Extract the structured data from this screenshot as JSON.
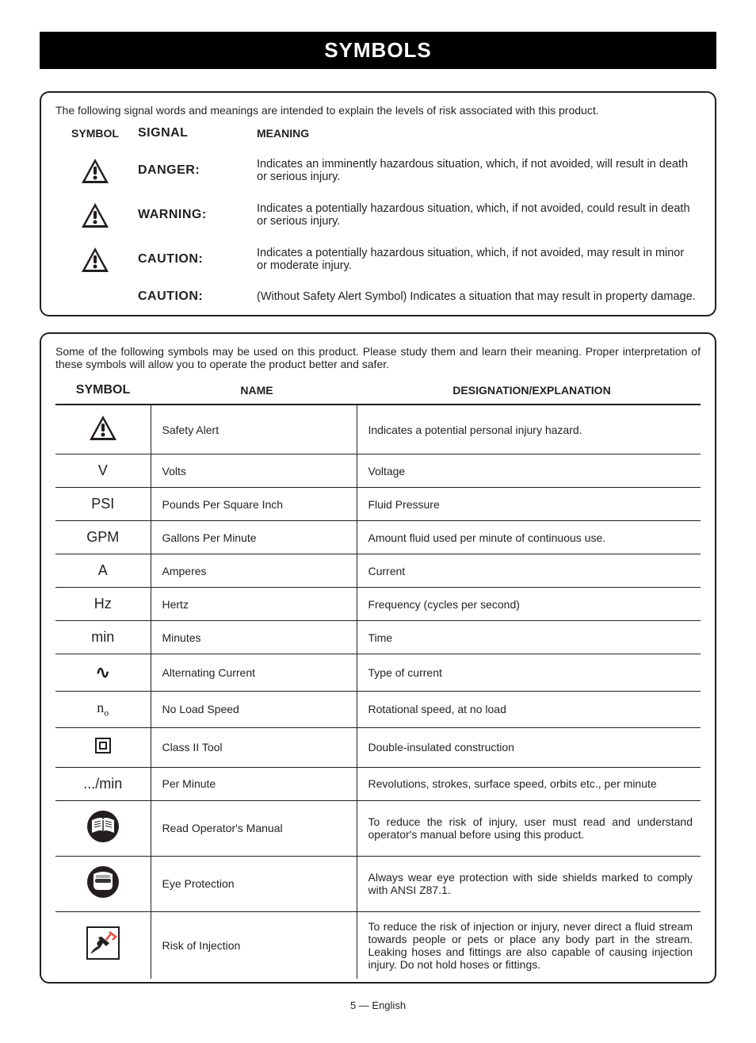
{
  "page": {
    "title": "SYMBOLS",
    "footer": "5 — English"
  },
  "signal_box": {
    "intro": "The following signal words and meanings are intended to explain the levels of risk associated with this product.",
    "headers": {
      "symbol": "SYMBOL",
      "signal": "SIGNAL",
      "meaning": "MEANING"
    },
    "rows": [
      {
        "has_icon": true,
        "signal": "DANGER:",
        "meaning": "Indicates an imminently hazardous situation, which, if not avoided, will result in death or serious injury."
      },
      {
        "has_icon": true,
        "signal": "WARNING:",
        "meaning": "Indicates a potentially hazardous situation, which, if not avoided, could result in death or serious injury."
      },
      {
        "has_icon": true,
        "signal": "CAUTION:",
        "meaning": "Indicates a potentially hazardous situation, which, if not avoided, may result in minor or moderate injury."
      },
      {
        "has_icon": false,
        "signal": "CAUTION:",
        "meaning": "(Without Safety Alert Symbol) Indicates a situation that may result in property damage."
      }
    ]
  },
  "symbol_box": {
    "intro": "Some of the following symbols may be used on this product. Please study them and learn their meaning. Proper interpretation of these symbols will allow you to operate the product better and safer.",
    "headers": {
      "symbol": "SYMBOL",
      "name": "NAME",
      "designation": "DESIGNATION/EXPLANATION"
    },
    "rows": [
      {
        "symbol_type": "alert",
        "symbol_text": "",
        "name": "Safety Alert",
        "desc": "Indicates a potential personal injury hazard."
      },
      {
        "symbol_type": "text",
        "symbol_text": "V",
        "name": "Volts",
        "desc": "Voltage"
      },
      {
        "symbol_type": "text",
        "symbol_text": "PSI",
        "name": "Pounds Per Square Inch",
        "desc": "Fluid Pressure"
      },
      {
        "symbol_type": "text",
        "symbol_text": "GPM",
        "name": "Gallons Per Minute",
        "desc": "Amount fluid used per minute of continuous use."
      },
      {
        "symbol_type": "text",
        "symbol_text": "A",
        "name": "Amperes",
        "desc": "Current"
      },
      {
        "symbol_type": "text",
        "symbol_text": "Hz",
        "name": "Hertz",
        "desc": "Frequency (cycles per second)"
      },
      {
        "symbol_type": "text",
        "symbol_text": "min",
        "name": "Minutes",
        "desc": "Time"
      },
      {
        "symbol_type": "ac",
        "symbol_text": "∿",
        "name": "Alternating Current",
        "desc": "Type of current"
      },
      {
        "symbol_type": "noload",
        "symbol_text": "n",
        "symbol_sub": "o",
        "name": "No Load Speed",
        "desc": "Rotational speed, at no load"
      },
      {
        "symbol_type": "class2",
        "symbol_text": "",
        "name": "Class II Tool",
        "desc": "Double-insulated construction"
      },
      {
        "symbol_type": "text",
        "symbol_text": ".../min",
        "name": "Per Minute",
        "desc": "Revolutions, strokes, surface speed, orbits etc., per minute"
      },
      {
        "symbol_type": "manual",
        "symbol_text": "",
        "name": "Read Operator's Manual",
        "desc": "To reduce the risk of injury, user must read and understand operator's manual before using this product.",
        "justify": true
      },
      {
        "symbol_type": "eye",
        "symbol_text": "",
        "name": "Eye Protection",
        "desc": "Always wear eye protection with side shields marked to comply with ANSI Z87.1.",
        "justify": true
      },
      {
        "symbol_type": "inject",
        "symbol_text": "",
        "name": "Risk of Injection",
        "desc": "To reduce the risk of injection or injury, never direct a fluid stream towards people or pets or place any body part in the stream. Leaking hoses and fittings are also capable of causing injection injury. Do not hold hoses or fittings.",
        "justify": true
      }
    ]
  },
  "colors": {
    "text": "#231f20",
    "title_bg": "#000000",
    "title_fg": "#ffffff",
    "border": "#231f20"
  }
}
